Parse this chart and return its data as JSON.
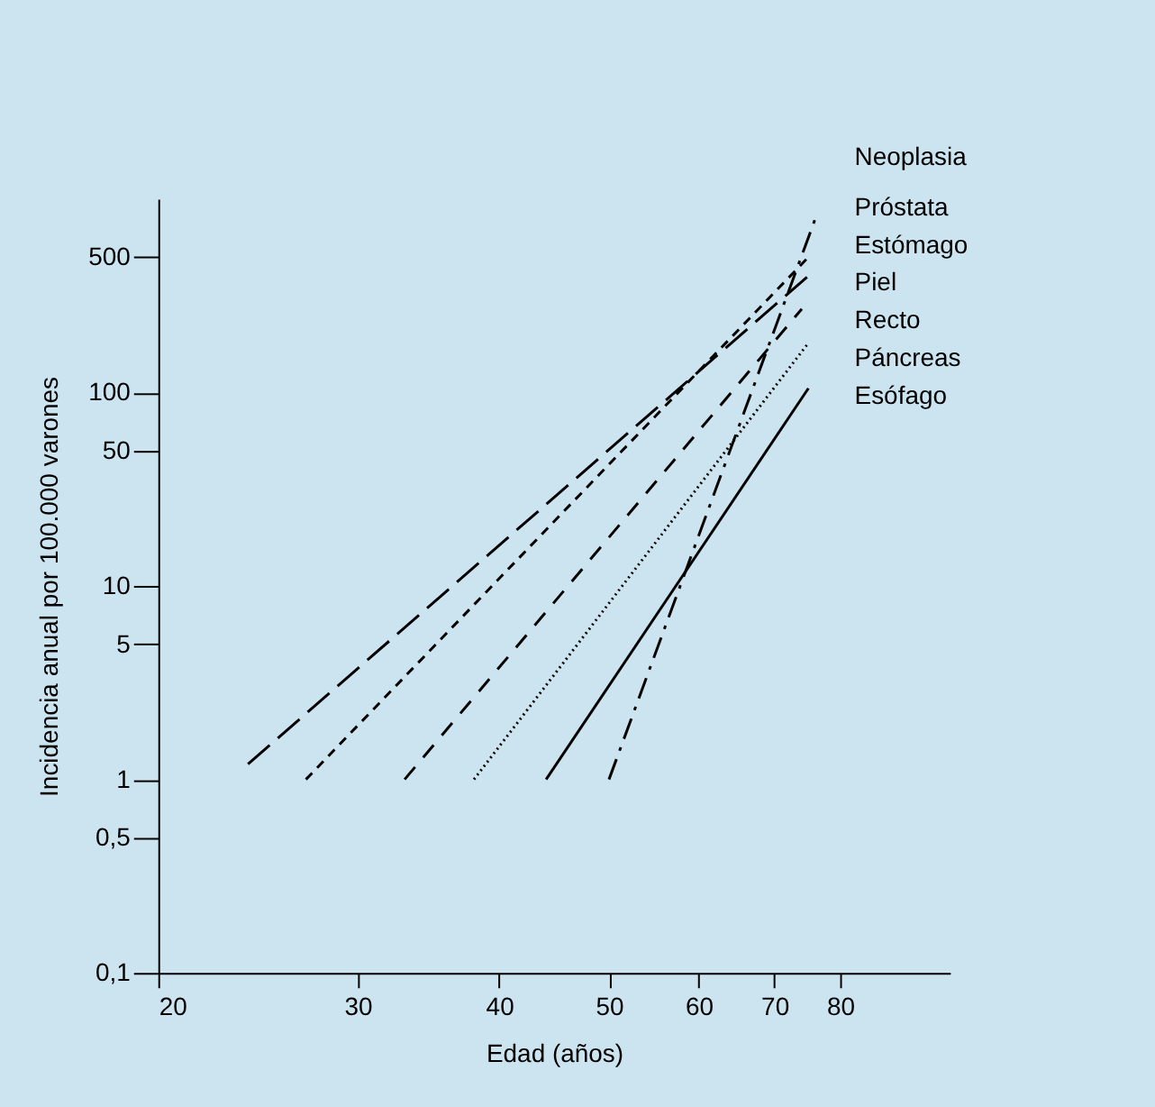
{
  "chart_data": {
    "type": "line",
    "xlabel": "Edad (años)",
    "ylabel": "Incidencia anual por 100.000 varones",
    "legend_title": "Neoplasia",
    "log": "xy",
    "grid": false,
    "xlim": [
      20,
      100
    ],
    "xticks": [
      20,
      30,
      40,
      50,
      60,
      70,
      80
    ],
    "ylim": [
      0.1,
      1000
    ],
    "yticks": [
      {
        "value": 0.1,
        "label": "0,1"
      },
      {
        "value": 0.5,
        "label": "0,5"
      },
      1,
      5,
      10,
      50,
      100,
      500
    ],
    "series": [
      {
        "name": "Próstata",
        "color": "#000000",
        "line_style": "dashdot",
        "x": [
          50,
          76
        ],
        "values": [
          1,
          780
        ]
      },
      {
        "name": "Estómago",
        "color": "#000000",
        "line_style": "dashed",
        "x": [
          27,
          75
        ],
        "values": [
          1,
          500
        ]
      },
      {
        "name": "Piel",
        "color": "#000000",
        "line_style": "longdash",
        "x": [
          24,
          75
        ],
        "values": [
          1.2,
          400
        ]
      },
      {
        "name": "Recto",
        "color": "#000000",
        "line_style": "mediumdash",
        "x": [
          33,
          74
        ],
        "values": [
          1,
          270
        ]
      },
      {
        "name": "Páncreas",
        "color": "#000000",
        "line_style": "dotted",
        "x": [
          38,
          75
        ],
        "values": [
          1,
          180
        ]
      },
      {
        "name": "Esófago",
        "color": "#000000",
        "line_style": "solid",
        "x": [
          44,
          75
        ],
        "values": [
          1,
          105
        ]
      }
    ]
  }
}
